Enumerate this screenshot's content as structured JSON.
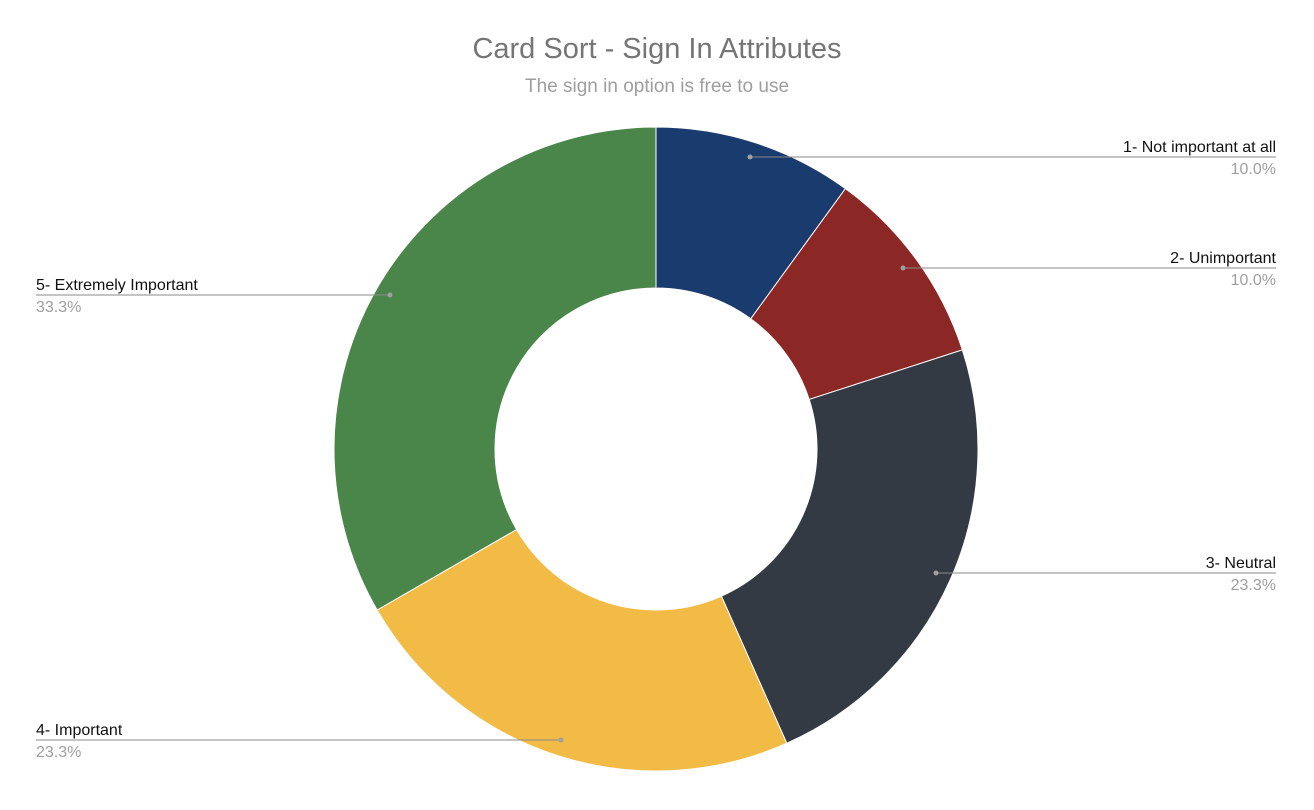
{
  "chart_data": {
    "type": "pie",
    "title": "Card Sort - Sign In Attributes",
    "subtitle": "The sign in option is free to use",
    "donut": true,
    "slices": [
      {
        "label": "1- Not important at all",
        "percent_label": "10.0%",
        "value": 10.0,
        "color": "#1a3b6e"
      },
      {
        "label": "2- Unimportant",
        "percent_label": "10.0%",
        "value": 10.0,
        "color": "#8b2826"
      },
      {
        "label": "3- Neutral",
        "percent_label": "23.3%",
        "value": 23.3,
        "color": "#343a44"
      },
      {
        "label": "4- Important",
        "percent_label": "23.3%",
        "value": 23.3,
        "color": "#f2bb46"
      },
      {
        "label": "5- Extremely Important",
        "percent_label": "33.3%",
        "value": 33.3,
        "color": "#4a8549"
      }
    ],
    "legend": "labels-outside"
  }
}
